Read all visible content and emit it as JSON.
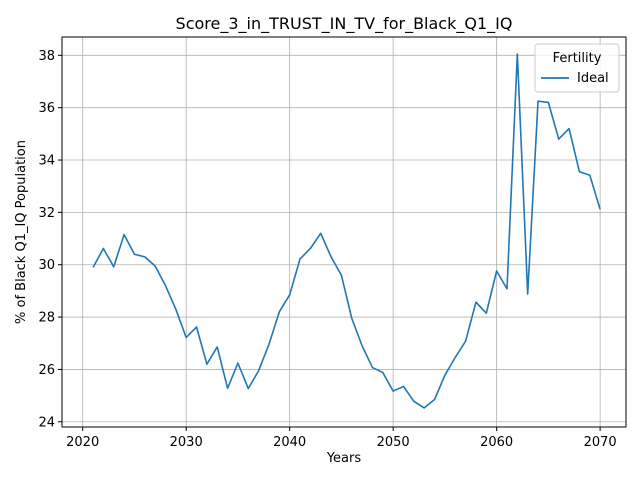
{
  "chart_data": {
    "type": "line",
    "title": "Score_3_in_TRUST_IN_TV_for_Black_Q1_IQ",
    "xlabel": "Years",
    "ylabel": "% of Black Q1_IQ Population",
    "xlim": [
      2018,
      2072.5
    ],
    "ylim": [
      23.8,
      38.7
    ],
    "xticks": [
      2020,
      2030,
      2040,
      2050,
      2060,
      2070
    ],
    "yticks": [
      24,
      26,
      28,
      30,
      32,
      34,
      36,
      38
    ],
    "grid": true,
    "legend": {
      "title": "Fertility",
      "position": "top-right"
    },
    "x": [
      2021,
      2022,
      2023,
      2024,
      2025,
      2026,
      2027,
      2028,
      2029,
      2030,
      2031,
      2032,
      2033,
      2034,
      2035,
      2036,
      2037,
      2038,
      2039,
      2040,
      2041,
      2042,
      2043,
      2044,
      2045,
      2046,
      2047,
      2048,
      2049,
      2050,
      2051,
      2052,
      2053,
      2054,
      2055,
      2056,
      2057,
      2058,
      2059,
      2060,
      2061,
      2062,
      2063,
      2064,
      2065,
      2066,
      2067,
      2068,
      2069,
      2070
    ],
    "series": [
      {
        "name": "Ideal",
        "color": "#1f77b4",
        "values": [
          29.9,
          30.62,
          29.92,
          31.15,
          30.4,
          30.3,
          29.95,
          29.2,
          28.3,
          27.22,
          27.62,
          26.2,
          26.86,
          25.28,
          26.24,
          25.27,
          25.95,
          26.96,
          28.2,
          28.85,
          30.22,
          30.62,
          31.2,
          30.3,
          29.6,
          27.95,
          26.9,
          26.07,
          25.88,
          25.17,
          25.35,
          24.78,
          24.53,
          24.85,
          25.78,
          26.46,
          27.08,
          28.57,
          28.15,
          29.76,
          29.08,
          38.05,
          28.88,
          36.25,
          36.2,
          34.8,
          35.2,
          33.55,
          33.42,
          32.12
        ]
      }
    ]
  }
}
